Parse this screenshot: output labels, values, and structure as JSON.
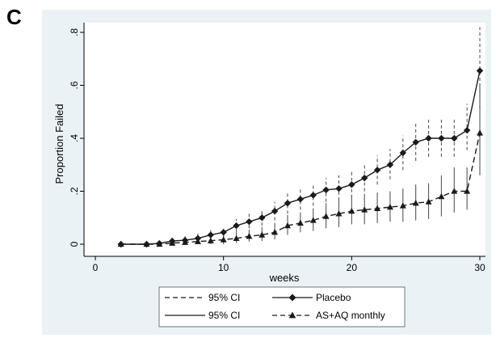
{
  "panel_label": "C",
  "chart_data": {
    "type": "line",
    "xlabel": "weeks",
    "ylabel": "Proportion Failed",
    "xlim": [
      0,
      30
    ],
    "ylim": [
      0,
      0.8
    ],
    "x_ticks": [
      0,
      10,
      20,
      30
    ],
    "x_tick_labels": [
      "0",
      "10",
      "20",
      "30"
    ],
    "y_ticks": [
      0,
      0.2,
      0.4,
      0.6,
      0.8
    ],
    "y_tick_labels": [
      "0",
      ".2",
      ".4",
      ".6",
      ".8"
    ],
    "grid": false,
    "legend_position": "bottom",
    "legend": [
      {
        "label": "95% CI",
        "style": "dashed-line"
      },
      {
        "label": "Placebo",
        "style": "solid-diamond"
      },
      {
        "label": "95% CI",
        "style": "solid-line"
      },
      {
        "label": "AS+AQ monthly",
        "style": "dashed-triangle"
      }
    ],
    "background_color": "#eaf2f6",
    "series": [
      {
        "name": "Placebo",
        "marker": "diamond",
        "line": "solid",
        "ci_line": "dashed",
        "x": [
          2,
          4,
          5,
          6,
          7,
          8,
          9,
          10,
          11,
          12,
          13,
          14,
          15,
          16,
          17,
          18,
          19,
          20,
          21,
          22,
          23,
          24,
          25,
          26,
          27,
          28,
          29,
          30
        ],
        "y": [
          0.0,
          0.0,
          0.003,
          0.012,
          0.015,
          0.022,
          0.035,
          0.045,
          0.07,
          0.085,
          0.1,
          0.125,
          0.155,
          0.17,
          0.185,
          0.205,
          0.21,
          0.225,
          0.25,
          0.28,
          0.3,
          0.345,
          0.385,
          0.4,
          0.4,
          0.4,
          0.43,
          0.655
        ],
        "ci_lower": [
          0.0,
          0.0,
          0.0,
          0.0,
          0.005,
          0.01,
          0.02,
          0.025,
          0.045,
          0.06,
          0.07,
          0.09,
          0.115,
          0.13,
          0.145,
          0.16,
          0.165,
          0.175,
          0.2,
          0.225,
          0.245,
          0.28,
          0.315,
          0.33,
          0.33,
          0.33,
          0.355,
          0.51
        ],
        "ci_upper": [
          0.0,
          0.0,
          0.012,
          0.025,
          0.03,
          0.04,
          0.055,
          0.065,
          0.095,
          0.115,
          0.13,
          0.16,
          0.195,
          0.215,
          0.23,
          0.25,
          0.26,
          0.275,
          0.3,
          0.335,
          0.36,
          0.41,
          0.455,
          0.47,
          0.47,
          0.47,
          0.53,
          0.82
        ]
      },
      {
        "name": "AS+AQ monthly",
        "marker": "triangle",
        "line": "dashed",
        "ci_line": "solid",
        "x": [
          2,
          4,
          5,
          6,
          7,
          8,
          9,
          10,
          11,
          12,
          13,
          14,
          15,
          16,
          17,
          18,
          19,
          20,
          21,
          22,
          23,
          24,
          25,
          26,
          27,
          28,
          29,
          30
        ],
        "y": [
          0.0,
          0.0,
          0.0,
          0.004,
          0.007,
          0.01,
          0.013,
          0.017,
          0.022,
          0.03,
          0.035,
          0.045,
          0.07,
          0.08,
          0.09,
          0.105,
          0.115,
          0.125,
          0.13,
          0.135,
          0.14,
          0.145,
          0.155,
          0.16,
          0.18,
          0.2,
          0.2,
          0.42
        ],
        "ci_lower": [
          0.0,
          0.0,
          0.0,
          0.0,
          0.0,
          0.0,
          0.0,
          0.0,
          0.005,
          0.01,
          0.012,
          0.018,
          0.035,
          0.045,
          0.05,
          0.06,
          0.065,
          0.075,
          0.075,
          0.08,
          0.085,
          0.085,
          0.09,
          0.095,
          0.105,
          0.12,
          0.13,
          0.26
        ],
        "ci_upper": [
          0.0,
          0.0,
          0.0,
          0.01,
          0.015,
          0.022,
          0.03,
          0.04,
          0.045,
          0.055,
          0.065,
          0.08,
          0.11,
          0.12,
          0.135,
          0.155,
          0.165,
          0.18,
          0.19,
          0.195,
          0.2,
          0.21,
          0.225,
          0.23,
          0.26,
          0.29,
          0.29,
          0.6
        ]
      }
    ]
  }
}
